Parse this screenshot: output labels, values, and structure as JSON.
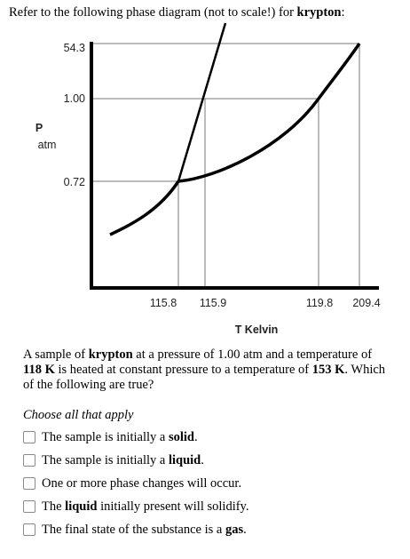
{
  "intro": {
    "before": "Refer to the following phase diagram (not to scale!) for ",
    "element": "krypton",
    "after": ":"
  },
  "diagram": {
    "y_axis": {
      "label_line1": "P",
      "label_line2": "atm"
    },
    "y_ticks": [
      "54.3",
      "1.00",
      "0.72"
    ],
    "x_ticks": [
      "115.8",
      "115.9",
      "119.8",
      "209.4"
    ],
    "x_axis_label": "T Kelvin"
  },
  "question": {
    "s1": "A sample of ",
    "s2": "krypton",
    "s3": " at a pressure of 1.00 atm and a temperature of ",
    "s4": "118 K",
    "s5": " is heated at constant pressure to a temperature of ",
    "s6": "153 K",
    "s7": ". Which of the following are true?"
  },
  "instruction": "Choose all that apply",
  "options": [
    {
      "before": "The sample is initially a ",
      "bold": "solid",
      "after": "."
    },
    {
      "before": "The sample is initially a ",
      "bold": "liquid",
      "after": "."
    },
    {
      "before": "One or more phase changes will occur.",
      "bold": "",
      "after": ""
    },
    {
      "before": "The ",
      "bold": "liquid",
      "after": " initially present will solidify."
    },
    {
      "before": "The final state of the substance is a ",
      "bold": "gas",
      "after": "."
    }
  ]
}
